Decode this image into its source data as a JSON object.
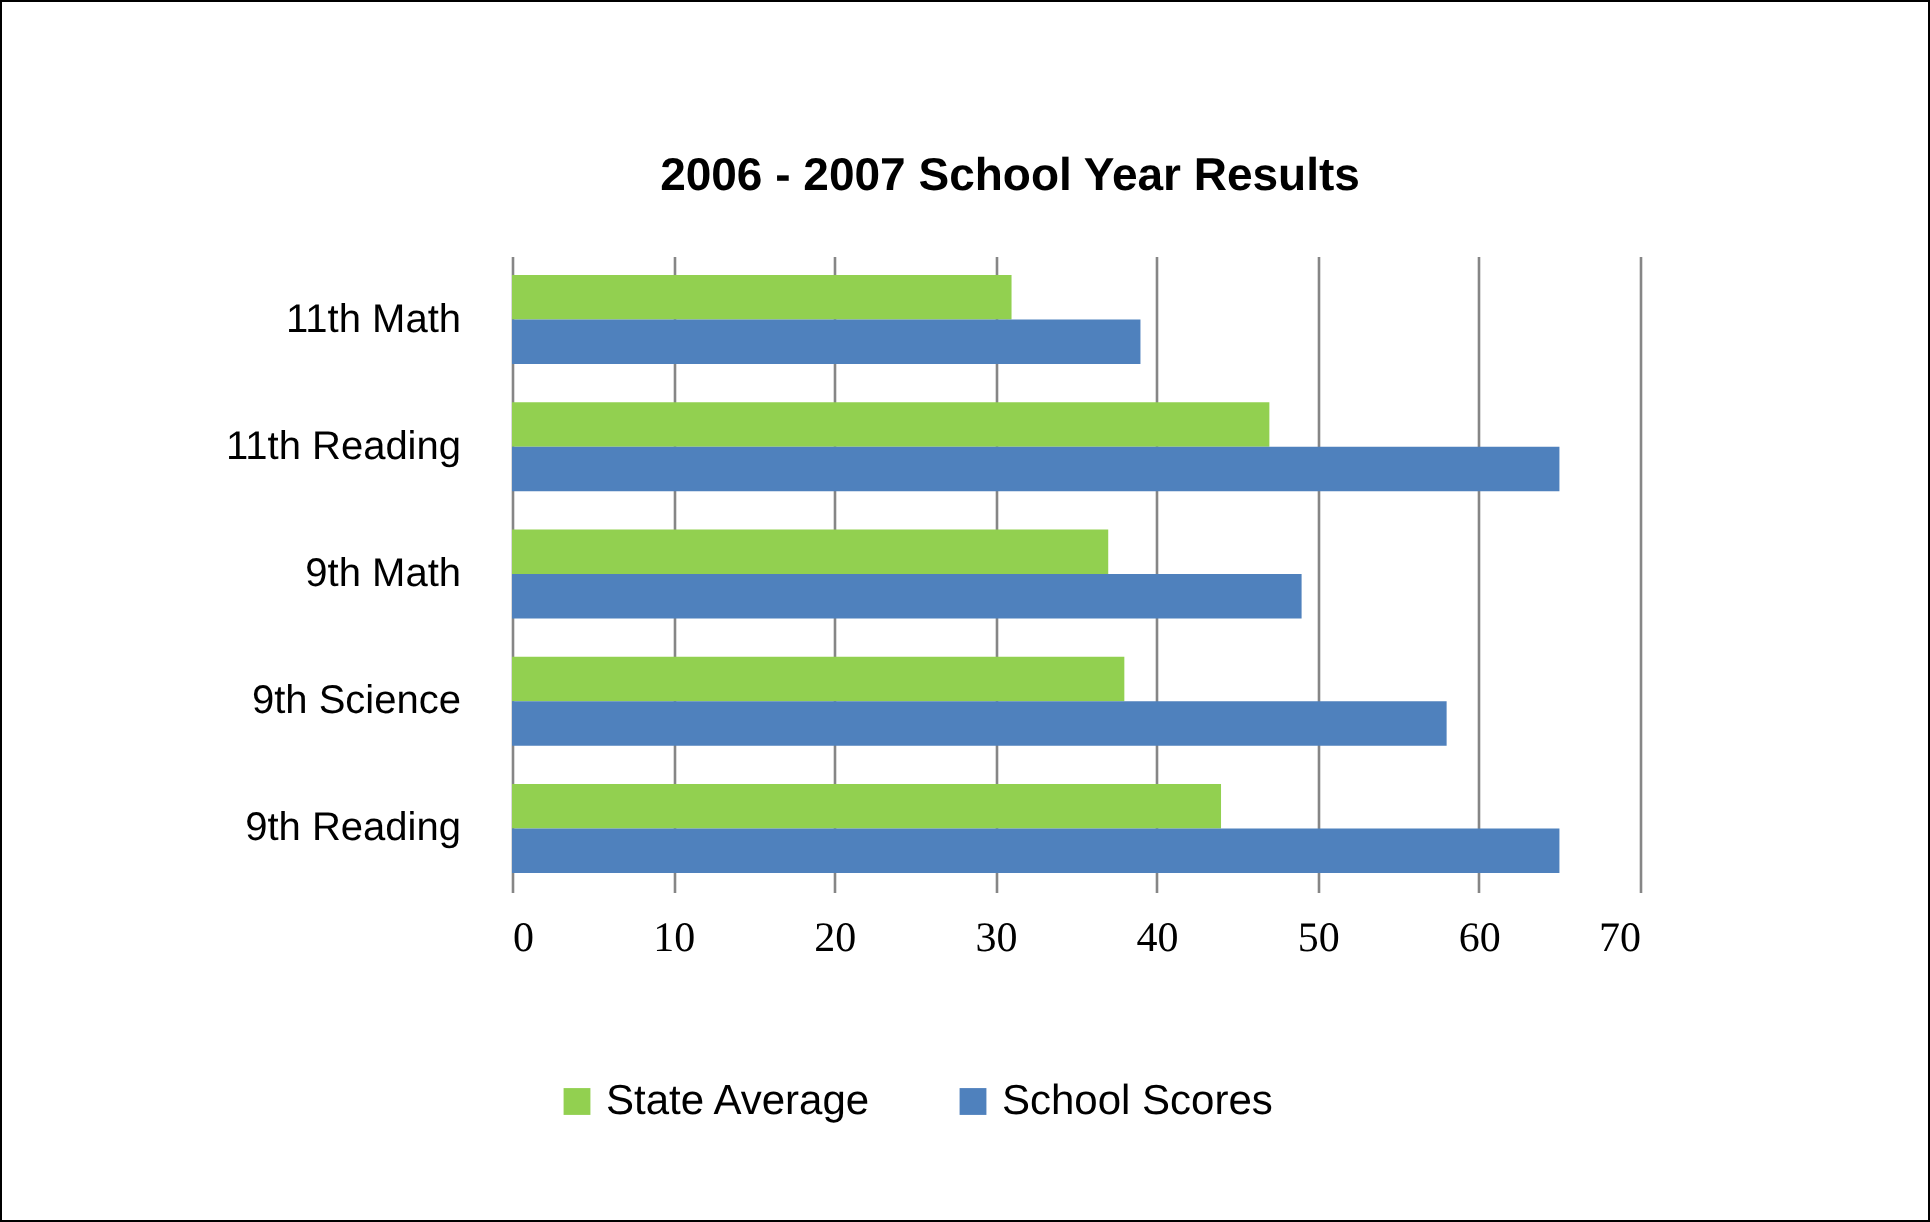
{
  "chart_data": {
    "type": "bar",
    "orientation": "horizontal",
    "title": "2006 - 2007 School Year Results",
    "categories": [
      "11th Math",
      "11th Reading",
      "9th Math",
      "9th Science",
      "9th Reading"
    ],
    "series": [
      {
        "name": "State Average",
        "color": "#92d050",
        "values": [
          31,
          47,
          37,
          38,
          44
        ]
      },
      {
        "name": "School Scores",
        "color": "#4f81bd",
        "values": [
          39,
          65,
          49,
          58,
          65
        ]
      }
    ],
    "xlim": [
      0,
      70
    ],
    "xticks": [
      0,
      10,
      20,
      30,
      40,
      50,
      60,
      70
    ],
    "grid": "x",
    "legend": "bottom"
  }
}
